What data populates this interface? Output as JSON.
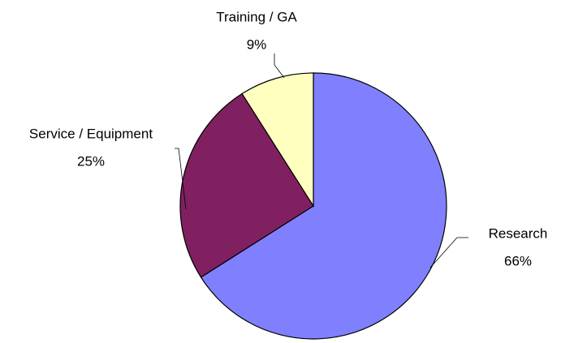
{
  "chart_data": {
    "type": "pie",
    "categories": [
      "Research",
      "Service / Equipment",
      "Training / GA"
    ],
    "values": [
      66,
      25,
      9
    ],
    "value_labels": [
      "66%",
      "25%",
      "9%"
    ],
    "colors": [
      "#8080ff",
      "#802060",
      "#ffffc0"
    ]
  }
}
